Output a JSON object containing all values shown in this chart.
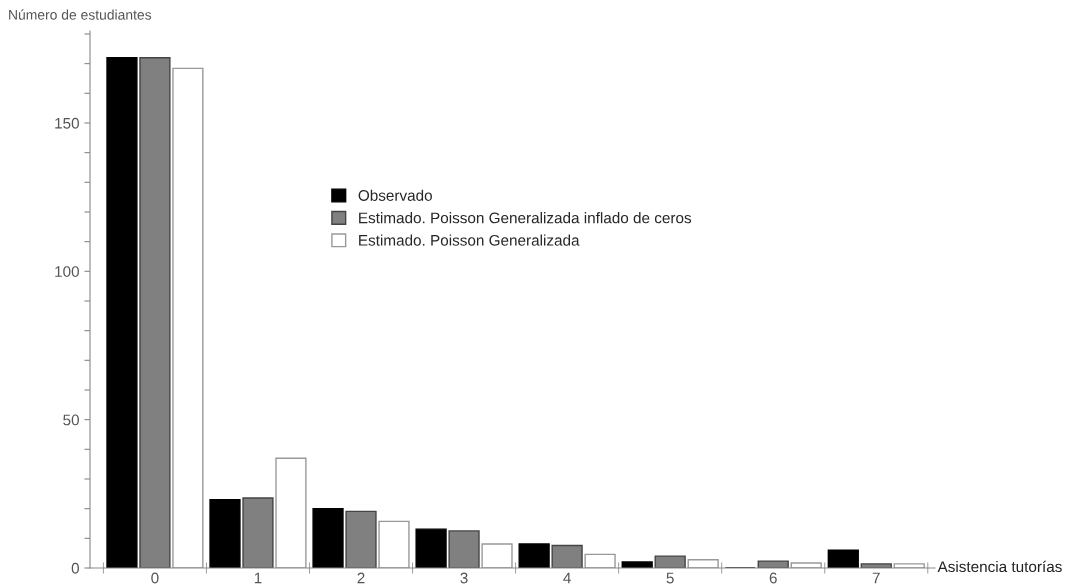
{
  "chart_data": {
    "type": "bar",
    "xlabel": "Asistencia tutorías",
    "ylabel": "Número de estudiantes",
    "categories": [
      "0",
      "1",
      "2",
      "3",
      "4",
      "5",
      "6",
      "7"
    ],
    "series": [
      {
        "name": "Observado",
        "color": "#000000",
        "values": [
          172,
          23,
          20,
          13.1,
          8.1,
          2,
          0,
          6
        ]
      },
      {
        "name": "Estimado. Poisson Generalizada inflado de ceros",
        "color": "#808080",
        "values": [
          172,
          23.6,
          19.1,
          12.5,
          7.6,
          4,
          2.3,
          1.4
        ]
      },
      {
        "name": "Estimado. Poisson Generalizada",
        "color": "#ffffff",
        "values": [
          168.4,
          37,
          15.7,
          8.1,
          4.6,
          2.8,
          1.7,
          1.4
        ]
      }
    ],
    "ylim": [
      0,
      181
    ],
    "yticks": [
      0,
      {
        "value": 10,
        "label": null
      },
      {
        "value": 20,
        "label": null
      },
      {
        "value": 30,
        "label": null
      },
      {
        "value": 40,
        "label": null
      },
      50,
      {
        "value": 60,
        "label": null
      },
      {
        "value": 70,
        "label": null
      },
      {
        "value": 80,
        "label": null
      },
      {
        "value": 90,
        "label": null
      },
      100,
      {
        "value": 110,
        "label": null
      },
      {
        "value": 120,
        "label": null
      },
      {
        "value": 130,
        "label": null
      },
      {
        "value": 140,
        "label": null
      },
      150,
      {
        "value": 160,
        "label": null
      },
      {
        "value": 170,
        "label": null
      },
      {
        "value": 180,
        "label": null
      }
    ],
    "grid": false,
    "legend": "center"
  }
}
